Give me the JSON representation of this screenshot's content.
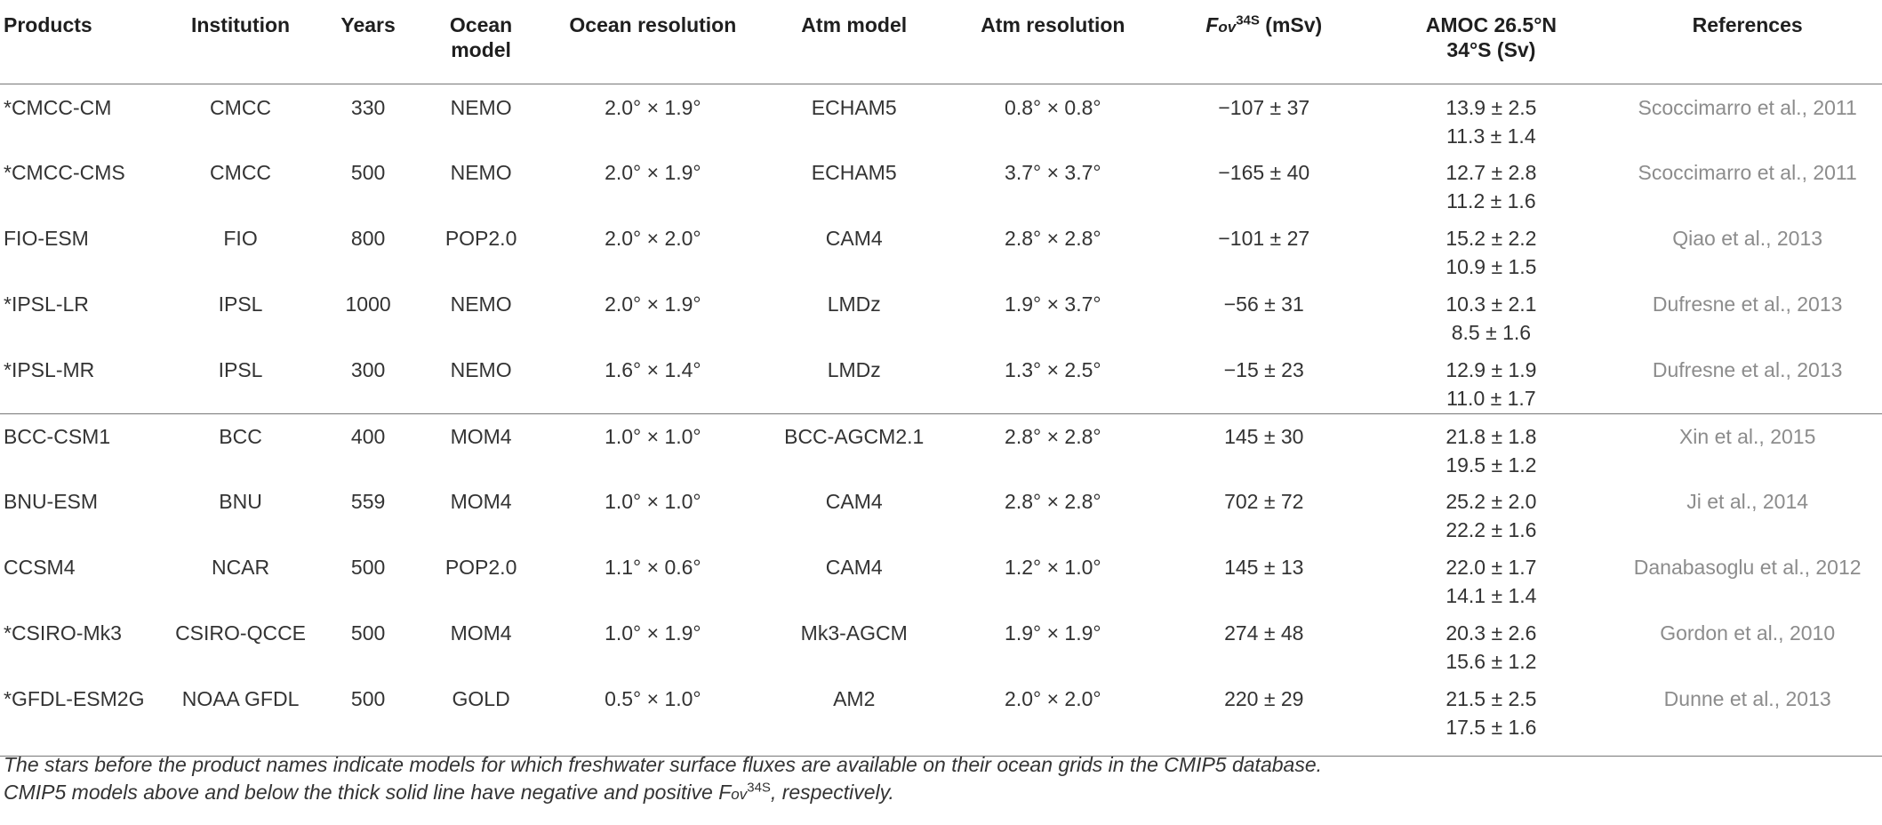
{
  "table": {
    "headers": {
      "products": "Products",
      "institution": "Institution",
      "years": "Years",
      "ocean_model_1": "Ocean",
      "ocean_model_2": "model",
      "ocean_resolution": "Ocean resolution",
      "atm_model": "Atm model",
      "atm_resolution": "Atm resolution",
      "fov_symbol": "F",
      "fov_sub": "ov",
      "fov_sup": "34S",
      "fov_unit": " (mSv)",
      "amoc_1": "AMOC 26.5°N",
      "amoc_2": "34°S (Sv)",
      "references": "References"
    },
    "rows": [
      {
        "product": "*CMCC-CM",
        "institution": "CMCC",
        "years": "330",
        "ocean_model": "NEMO",
        "ocean_res": "2.0° × 1.9°",
        "atm_model": "ECHAM5",
        "atm_res": "0.8° × 0.8°",
        "fov": "−107 ± 37",
        "amoc_n": "13.9 ± 2.5",
        "amoc_s": "11.3 ± 1.4",
        "ref": "Scoccimarro et al., 2011"
      },
      {
        "product": "*CMCC-CMS",
        "institution": "CMCC",
        "years": "500",
        "ocean_model": "NEMO",
        "ocean_res": "2.0° × 1.9°",
        "atm_model": "ECHAM5",
        "atm_res": "3.7° × 3.7°",
        "fov": "−165 ± 40",
        "amoc_n": "12.7 ± 2.8",
        "amoc_s": "11.2 ± 1.6",
        "ref": "Scoccimarro et al., 2011"
      },
      {
        "product": "FIO-ESM",
        "institution": "FIO",
        "years": "800",
        "ocean_model": "POP2.0",
        "ocean_res": "2.0° × 2.0°",
        "atm_model": "CAM4",
        "atm_res": "2.8° × 2.8°",
        "fov": "−101 ± 27",
        "amoc_n": "15.2 ± 2.2",
        "amoc_s": "10.9 ± 1.5",
        "ref": "Qiao et al., 2013"
      },
      {
        "product": "*IPSL-LR",
        "institution": "IPSL",
        "years": "1000",
        "ocean_model": "NEMO",
        "ocean_res": "2.0° × 1.9°",
        "atm_model": "LMDz",
        "atm_res": "1.9° × 3.7°",
        "fov": "−56 ± 31",
        "amoc_n": "10.3 ± 2.1",
        "amoc_s": "8.5 ± 1.6",
        "ref": "Dufresne et al., 2013"
      },
      {
        "product": "*IPSL-MR",
        "institution": "IPSL",
        "years": "300",
        "ocean_model": "NEMO",
        "ocean_res": "1.6° × 1.4°",
        "atm_model": "LMDz",
        "atm_res": "1.3° × 2.5°",
        "fov": "−15 ± 23",
        "amoc_n": "12.9 ± 1.9",
        "amoc_s": "11.0 ± 1.7",
        "ref": "Dufresne et al., 2013"
      },
      {
        "product": "BCC-CSM1",
        "institution": "BCC",
        "years": "400",
        "ocean_model": "MOM4",
        "ocean_res": "1.0° × 1.0°",
        "atm_model": "BCC-AGCM2.1",
        "atm_res": "2.8° × 2.8°",
        "fov": "145 ± 30",
        "amoc_n": "21.8 ± 1.8",
        "amoc_s": "19.5 ± 1.2",
        "ref": "Xin et al., 2015"
      },
      {
        "product": "BNU-ESM",
        "institution": "BNU",
        "years": "559",
        "ocean_model": "MOM4",
        "ocean_res": "1.0° × 1.0°",
        "atm_model": "CAM4",
        "atm_res": "2.8° × 2.8°",
        "fov": "702 ± 72",
        "amoc_n": "25.2 ± 2.0",
        "amoc_s": "22.2 ± 1.6",
        "ref": "Ji et al., 2014"
      },
      {
        "product": "CCSM4",
        "institution": "NCAR",
        "years": "500",
        "ocean_model": "POP2.0",
        "ocean_res": "1.1° × 0.6°",
        "atm_model": "CAM4",
        "atm_res": "1.2° × 1.0°",
        "fov": "145 ± 13",
        "amoc_n": "22.0 ± 1.7",
        "amoc_s": "14.1 ± 1.4",
        "ref": "Danabasoglu et al., 2012"
      },
      {
        "product": "*CSIRO-Mk3",
        "institution": "CSIRO-QCCE",
        "years": "500",
        "ocean_model": "MOM4",
        "ocean_res": "1.0° × 1.9°",
        "atm_model": "Mk3-AGCM",
        "atm_res": "1.9° × 1.9°",
        "fov": "274 ± 48",
        "amoc_n": "20.3 ± 2.6",
        "amoc_s": "15.6 ± 1.2",
        "ref": "Gordon et al., 2010"
      },
      {
        "product": "*GFDL-ESM2G",
        "institution": "NOAA GFDL",
        "years": "500",
        "ocean_model": "GOLD",
        "ocean_res": "0.5° × 1.0°",
        "atm_model": "AM2",
        "atm_res": "2.0° × 2.0°",
        "fov": "220 ± 29",
        "amoc_n": "21.5 ± 2.5",
        "amoc_s": "17.5 ± 1.6",
        "ref": "Dunne et al., 2013"
      }
    ]
  },
  "footnote": {
    "line1": "The stars before the product names indicate models for which freshwater surface fluxes are available on their ocean grids in the CMIP5 database.",
    "line2_start": "CMIP5 models above and below the thick solid line have negative and positive F",
    "line2_sub": "ov",
    "line2_sup": "34S",
    "line2_end": ", respectively."
  }
}
